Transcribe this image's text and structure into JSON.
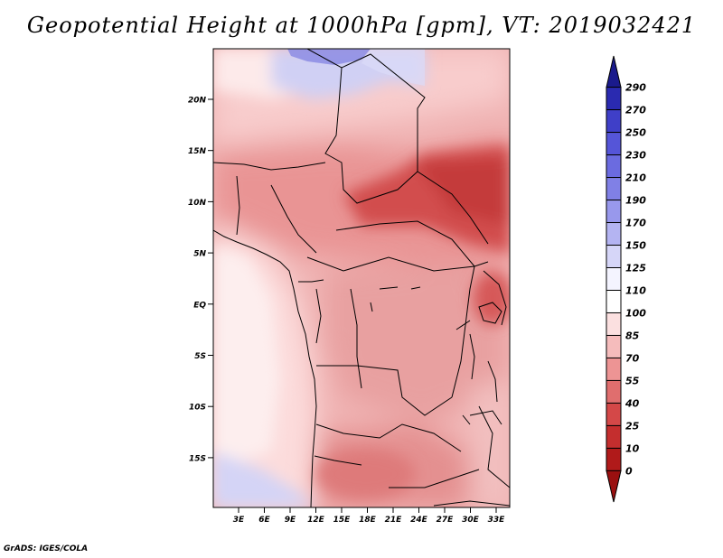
{
  "title": "Geopotential Height at 1000hPa [gpm], VT: 2019032421",
  "credit": "GrADS: IGES/COLA",
  "map": {
    "lat_labels": [
      "20N",
      "15N",
      "10N",
      "5N",
      "EQ",
      "5S",
      "10S",
      "15S"
    ],
    "lon_labels": [
      "3E",
      "6E",
      "9E",
      "12E",
      "15E",
      "18E",
      "21E",
      "24E",
      "27E",
      "30E",
      "33E"
    ]
  },
  "colorbar": {
    "levels": [
      "290",
      "270",
      "250",
      "230",
      "210",
      "190",
      "170",
      "150",
      "125",
      "110",
      "100",
      "85",
      "70",
      "55",
      "40",
      "25",
      "10",
      "0"
    ],
    "colors": [
      "#1a1a8c",
      "#2a2ab0",
      "#3f3fc8",
      "#5555d8",
      "#6b6be0",
      "#8080e6",
      "#9898ec",
      "#b4b4f2",
      "#d6d6f8",
      "#f4f4ff",
      "#ffffff",
      "#fbe0e0",
      "#f5bcbc",
      "#ed9494",
      "#e06e6e",
      "#d44848",
      "#c42e2e",
      "#b01a1a",
      "#9a1010"
    ]
  }
}
